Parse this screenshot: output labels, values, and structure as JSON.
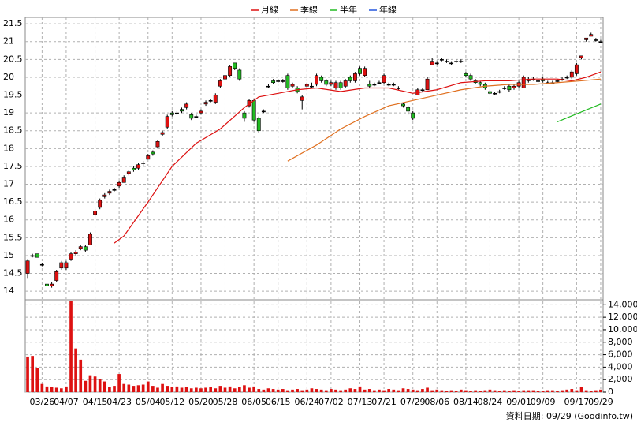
{
  "chart_data": {
    "type": "candlestick",
    "legend": "top",
    "up_color": "#dd1111",
    "down_color": "#22bb22",
    "flat_color": "#000000",
    "grid": true,
    "xlim": [
      -0.5,
      119.5
    ],
    "xticks": [
      {
        "value": 3,
        "label": "03/26"
      },
      {
        "value": 8,
        "label": "04/07"
      },
      {
        "value": 14,
        "label": "04/15"
      },
      {
        "value": 19,
        "label": "04/23"
      },
      {
        "value": 25,
        "label": "05/04"
      },
      {
        "value": 30,
        "label": "05/12"
      },
      {
        "value": 36,
        "label": "05/20"
      },
      {
        "value": 41,
        "label": "05/28"
      },
      {
        "value": 47,
        "label": "06/05"
      },
      {
        "value": 52,
        "label": "06/15"
      },
      {
        "value": 58,
        "label": "06/24"
      },
      {
        "value": 63,
        "label": "07/02"
      },
      {
        "value": 69,
        "label": "07/13"
      },
      {
        "value": 74,
        "label": "07/21"
      },
      {
        "value": 80,
        "label": "07/29"
      },
      {
        "value": 85,
        "label": "08/06"
      },
      {
        "value": 91,
        "label": "08/14"
      },
      {
        "value": 96,
        "label": "08/24"
      },
      {
        "value": 102,
        "label": "09/01"
      },
      {
        "value": 107,
        "label": "09/09"
      },
      {
        "value": 114,
        "label": "09/17"
      },
      {
        "value": 119,
        "label": "09/29"
      }
    ],
    "ylim": [
      13.76,
      21.68
    ],
    "yticks": [
      14,
      14.5,
      15,
      15.5,
      16,
      16.5,
      17,
      17.5,
      18,
      18.5,
      19,
      19.5,
      20,
      20.5,
      21,
      21.5
    ],
    "ohlc": [
      [
        14.5,
        14.9,
        14.35,
        14.85
      ],
      [
        15.0,
        15.05,
        14.95,
        15.0
      ],
      [
        15.05,
        15.05,
        14.95,
        14.95
      ],
      [
        14.75,
        14.8,
        14.7,
        14.75
      ],
      [
        14.2,
        14.25,
        14.1,
        14.15
      ],
      [
        14.15,
        14.25,
        14.1,
        14.2
      ],
      [
        14.3,
        14.6,
        14.25,
        14.55
      ],
      [
        14.65,
        14.85,
        14.6,
        14.8
      ],
      [
        14.65,
        14.85,
        14.6,
        14.8
      ],
      [
        14.9,
        15.1,
        14.85,
        15.05
      ],
      [
        15.05,
        15.15,
        15.0,
        15.1
      ],
      [
        15.2,
        15.3,
        15.15,
        15.25
      ],
      [
        15.25,
        15.3,
        15.1,
        15.15
      ],
      [
        15.3,
        15.65,
        15.3,
        15.6
      ],
      [
        16.15,
        16.3,
        16.1,
        16.25
      ],
      [
        16.35,
        16.6,
        16.3,
        16.55
      ],
      [
        16.65,
        16.75,
        16.6,
        16.7
      ],
      [
        16.75,
        16.85,
        16.7,
        16.8
      ],
      [
        16.85,
        16.9,
        16.8,
        16.85
      ],
      [
        16.95,
        17.1,
        16.9,
        17.05
      ],
      [
        17.05,
        17.25,
        17.05,
        17.2
      ],
      [
        17.3,
        17.4,
        17.25,
        17.35
      ],
      [
        17.45,
        17.5,
        17.35,
        17.4
      ],
      [
        17.45,
        17.6,
        17.4,
        17.55
      ],
      [
        17.6,
        17.65,
        17.5,
        17.6
      ],
      [
        17.7,
        17.85,
        17.7,
        17.8
      ],
      [
        17.9,
        17.95,
        17.8,
        17.85
      ],
      [
        18.05,
        18.25,
        18.0,
        18.2
      ],
      [
        18.4,
        18.5,
        18.35,
        18.45
      ],
      [
        18.6,
        18.95,
        18.55,
        18.9
      ],
      [
        19.0,
        19.05,
        18.9,
        18.95
      ],
      [
        19.0,
        19.05,
        18.95,
        19.0
      ],
      [
        19.1,
        19.15,
        19.0,
        19.05
      ],
      [
        19.15,
        19.3,
        19.1,
        19.25
      ],
      [
        18.95,
        19.0,
        18.8,
        18.85
      ],
      [
        18.9,
        18.95,
        18.85,
        18.9
      ],
      [
        19.0,
        19.1,
        18.95,
        19.05
      ],
      [
        19.25,
        19.35,
        19.2,
        19.3
      ],
      [
        19.35,
        19.4,
        19.3,
        19.35
      ],
      [
        19.3,
        19.55,
        19.25,
        19.5
      ],
      [
        19.75,
        19.95,
        19.7,
        19.9
      ],
      [
        19.95,
        20.1,
        19.9,
        20.05
      ],
      [
        20.05,
        20.35,
        20.0,
        20.3
      ],
      [
        20.4,
        20.4,
        20.2,
        20.25
      ],
      [
        20.2,
        20.25,
        19.9,
        19.95
      ],
      [
        19.0,
        19.05,
        18.75,
        18.85
      ],
      [
        19.2,
        19.4,
        19.15,
        19.35
      ],
      [
        19.35,
        19.4,
        18.75,
        18.8
      ],
      [
        18.85,
        18.9,
        18.45,
        18.5
      ],
      [
        19.05,
        19.1,
        19.0,
        19.05
      ],
      [
        19.75,
        19.8,
        19.7,
        19.75
      ],
      [
        19.9,
        19.95,
        19.8,
        19.85
      ],
      [
        19.9,
        19.95,
        19.85,
        19.9
      ],
      [
        19.9,
        19.95,
        19.85,
        19.9
      ],
      [
        20.05,
        20.1,
        19.65,
        19.7
      ],
      [
        19.75,
        19.85,
        19.7,
        19.8
      ],
      [
        19.7,
        19.75,
        19.55,
        19.6
      ],
      [
        19.35,
        19.5,
        19.1,
        19.45
      ],
      [
        19.75,
        19.85,
        19.7,
        19.8
      ],
      [
        19.75,
        19.85,
        19.7,
        19.75
      ],
      [
        19.8,
        20.1,
        19.75,
        20.05
      ],
      [
        20.0,
        20.05,
        19.85,
        19.9
      ],
      [
        19.9,
        19.95,
        19.75,
        19.8
      ],
      [
        19.8,
        19.9,
        19.75,
        19.85
      ],
      [
        19.7,
        19.9,
        19.65,
        19.85
      ],
      [
        19.85,
        19.9,
        19.65,
        19.7
      ],
      [
        19.75,
        19.95,
        19.7,
        19.9
      ],
      [
        20.0,
        20.05,
        19.85,
        19.9
      ],
      [
        19.9,
        20.15,
        19.85,
        20.1
      ],
      [
        20.25,
        20.3,
        20.05,
        20.1
      ],
      [
        20.05,
        20.3,
        20.0,
        20.25
      ],
      [
        19.8,
        19.9,
        19.7,
        19.75
      ],
      [
        19.8,
        19.85,
        19.75,
        19.8
      ],
      [
        19.85,
        19.9,
        19.8,
        19.85
      ],
      [
        19.85,
        20.1,
        19.8,
        20.05
      ],
      [
        19.8,
        19.85,
        19.75,
        19.8
      ],
      [
        19.8,
        19.85,
        19.75,
        19.8
      ],
      [
        19.7,
        19.75,
        19.65,
        19.7
      ],
      [
        19.25,
        19.3,
        19.15,
        19.2
      ],
      [
        19.15,
        19.2,
        18.95,
        19.05
      ],
      [
        19.0,
        19.05,
        18.8,
        18.85
      ],
      [
        19.5,
        19.7,
        19.5,
        19.65
      ],
      [
        19.65,
        19.7,
        19.6,
        19.65
      ],
      [
        19.65,
        20.0,
        19.65,
        19.95
      ],
      [
        20.35,
        20.55,
        20.35,
        20.45
      ],
      [
        20.4,
        20.45,
        20.35,
        20.4
      ],
      [
        20.5,
        20.55,
        20.45,
        20.5
      ],
      [
        20.45,
        20.5,
        20.4,
        20.45
      ],
      [
        20.4,
        20.45,
        20.35,
        20.4
      ],
      [
        20.45,
        20.5,
        20.4,
        20.45
      ],
      [
        20.45,
        20.5,
        20.4,
        20.45
      ],
      [
        20.1,
        20.15,
        20.0,
        20.05
      ],
      [
        20.05,
        20.1,
        19.9,
        19.95
      ],
      [
        19.9,
        19.95,
        19.8,
        19.85
      ],
      [
        19.85,
        19.9,
        19.75,
        19.8
      ],
      [
        19.8,
        19.85,
        19.65,
        19.7
      ],
      [
        19.6,
        19.65,
        19.5,
        19.55
      ],
      [
        19.55,
        19.6,
        19.5,
        19.55
      ],
      [
        19.6,
        19.65,
        19.55,
        19.6
      ],
      [
        19.7,
        19.75,
        19.65,
        19.7
      ],
      [
        19.75,
        19.8,
        19.6,
        19.65
      ],
      [
        19.7,
        19.8,
        19.65,
        19.75
      ],
      [
        19.75,
        19.9,
        19.7,
        19.85
      ],
      [
        19.7,
        20.05,
        19.7,
        20.0
      ],
      [
        19.9,
        20.0,
        19.85,
        19.95
      ],
      [
        19.95,
        20.0,
        19.9,
        19.95
      ],
      [
        19.9,
        19.95,
        19.85,
        19.9
      ],
      [
        19.95,
        20.0,
        19.85,
        19.9
      ],
      [
        19.85,
        19.9,
        19.8,
        19.85
      ],
      [
        19.85,
        19.9,
        19.8,
        19.85
      ],
      [
        19.9,
        19.95,
        19.85,
        19.9
      ],
      [
        19.95,
        20.0,
        19.9,
        19.95
      ],
      [
        20.0,
        20.05,
        19.95,
        20.0
      ],
      [
        20.0,
        20.2,
        19.95,
        20.15
      ],
      [
        20.1,
        20.4,
        20.05,
        20.35
      ],
      [
        20.55,
        20.6,
        20.5,
        20.6
      ],
      [
        21.05,
        21.1,
        21.0,
        21.1
      ],
      [
        21.15,
        21.25,
        21.15,
        21.2
      ],
      [
        21.05,
        21.1,
        21.0,
        21.05
      ],
      [
        21.0,
        21.05,
        20.95,
        21.0
      ]
    ],
    "series": [
      {
        "name": "月線",
        "color": "#dd1111",
        "x": [
          18,
          20,
          25,
          30,
          35,
          40,
          45,
          48,
          52,
          56,
          60,
          65,
          70,
          75,
          80,
          85,
          90,
          95,
          100,
          105,
          110,
          113,
          116,
          119
        ],
        "values": [
          15.35,
          15.55,
          16.5,
          17.5,
          18.15,
          18.55,
          19.15,
          19.45,
          19.55,
          19.65,
          19.7,
          19.6,
          19.7,
          19.7,
          19.55,
          19.65,
          19.85,
          19.9,
          19.9,
          19.95,
          19.95,
          19.9,
          20.0,
          20.15
        ]
      },
      {
        "name": "季線",
        "color": "#e07020",
        "x": [
          54,
          60,
          65,
          70,
          75,
          80,
          85,
          90,
          95,
          100,
          105,
          110,
          115,
          119
        ],
        "values": [
          17.65,
          18.1,
          18.55,
          18.9,
          19.2,
          19.35,
          19.5,
          19.65,
          19.75,
          19.8,
          19.8,
          19.85,
          19.9,
          19.95
        ]
      },
      {
        "name": "半年",
        "color": "#22bb22",
        "x": [
          110,
          119
        ],
        "values": [
          18.75,
          19.25
        ]
      },
      {
        "name": "年線",
        "color": "#2255dd",
        "x": [],
        "values": []
      }
    ],
    "volume": {
      "color": "#dd1111",
      "ylim": [
        0,
        14800
      ],
      "yticks": [
        0,
        {
          "value": 2000,
          "label": "2,000"
        },
        {
          "value": 4000,
          "label": "4,000"
        },
        {
          "value": 6000,
          "label": "6,000"
        },
        {
          "value": 8000,
          "label": "8,000"
        },
        {
          "value": 10000,
          "label": "10,000"
        },
        {
          "value": 12000,
          "label": "12,000"
        },
        {
          "value": 14000,
          "label": "14,000"
        }
      ],
      "values": [
        5700,
        5800,
        3800,
        1300,
        900,
        800,
        700,
        600,
        900,
        14600,
        7000,
        5200,
        1800,
        2700,
        2500,
        2100,
        1700,
        800,
        1000,
        2900,
        1300,
        1200,
        1000,
        1100,
        1200,
        1700,
        1000,
        700,
        1300,
        1000,
        800,
        900,
        700,
        800,
        600,
        700,
        600,
        700,
        800,
        600,
        1000,
        700,
        900,
        600,
        800,
        1100,
        700,
        900,
        500,
        400,
        600,
        500,
        400,
        500,
        300,
        400,
        500,
        300,
        400,
        600,
        500,
        400,
        300,
        500,
        400,
        300,
        400,
        600,
        500,
        900,
        400,
        500,
        300,
        400,
        300,
        500,
        400,
        300,
        600,
        500,
        400,
        300,
        500,
        700,
        300,
        400,
        300,
        200,
        300,
        200,
        400,
        300,
        200,
        300,
        200,
        300,
        400,
        300,
        200,
        300,
        200,
        300,
        200,
        300,
        300,
        300,
        200,
        200,
        300,
        300,
        200,
        300,
        400,
        500,
        300,
        800,
        300,
        200,
        300,
        400
      ]
    },
    "footer": "資料日期: 09/29 (Goodinfo.tw)"
  }
}
